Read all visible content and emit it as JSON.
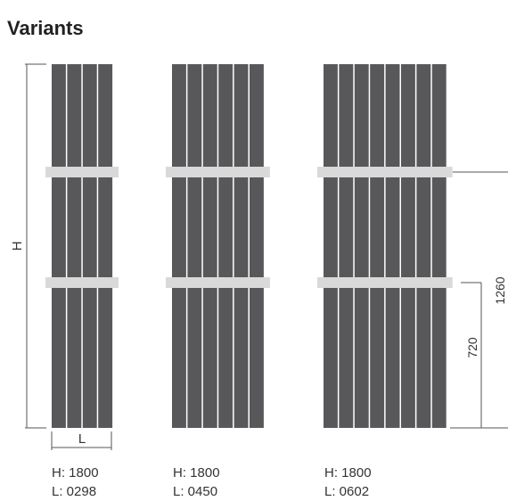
{
  "heading": "Variants",
  "labels": {
    "height_symbol": "H",
    "length_symbol": "L",
    "dim_upper_bar": "1260",
    "dim_lower_bar": "720"
  },
  "variants": [
    {
      "height_text": "H: 1800",
      "length_text": "L: 0298",
      "tubes": 4
    },
    {
      "height_text": "H: 1800",
      "length_text": "L: 0450",
      "tubes": 6
    },
    {
      "height_text": "H: 1800",
      "length_text": "L: 0602",
      "tubes": 8
    }
  ],
  "colors": {
    "tube": "#58585a",
    "bar": "#d9d9d9",
    "dimension_line": "#555555",
    "text": "#333333"
  }
}
